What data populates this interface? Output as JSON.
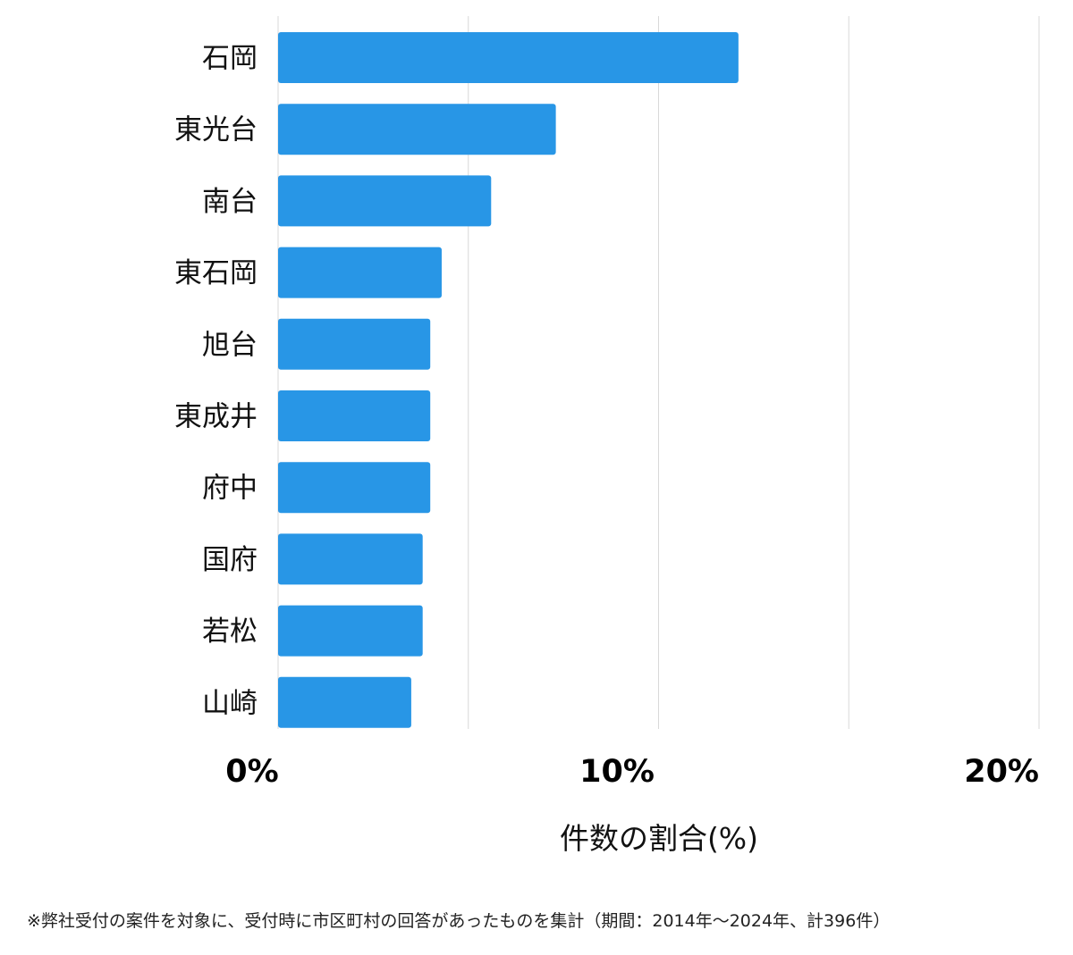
{
  "chart_data": {
    "type": "bar",
    "orientation": "horizontal",
    "categories": [
      "石岡",
      "東光台",
      "南台",
      "東石岡",
      "旭台",
      "東成井",
      "府中",
      "国府",
      "若松",
      "山崎"
    ],
    "values": [
      12.1,
      7.3,
      5.6,
      4.3,
      4.0,
      4.0,
      4.0,
      3.8,
      3.8,
      3.5
    ],
    "xlabel": "件数の割合(%)",
    "xlim": [
      0,
      20
    ],
    "xticks": [
      "0%",
      "10%",
      "20%"
    ],
    "grid": true,
    "bar_color": "#2896e6"
  },
  "footnote": "※弊社受付の案件を対象に、受付時に市区町村の回答があったものを集計（期間：2014年〜2024年、計396件）"
}
